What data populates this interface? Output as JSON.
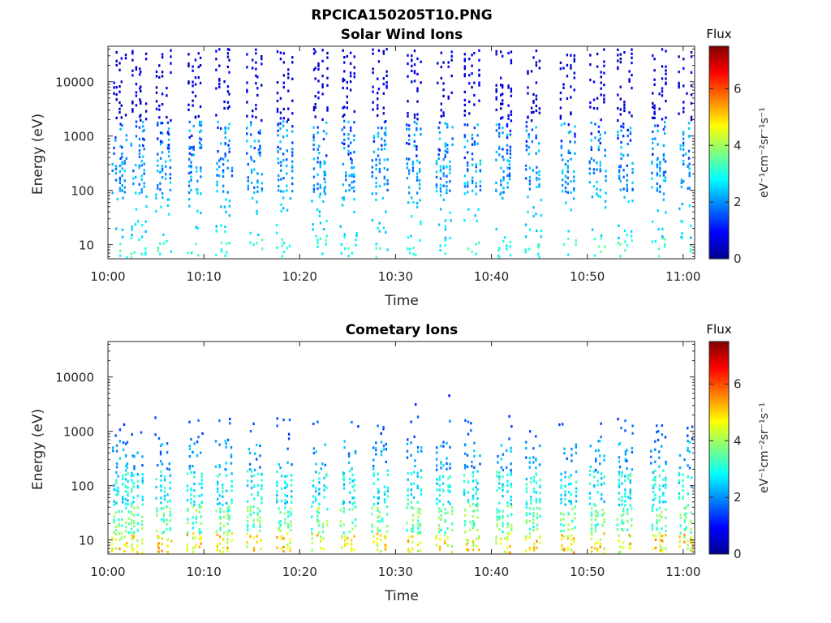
{
  "figure": {
    "title": "RPCICA150205T10.PNG"
  },
  "colorbar": {
    "label": "Flux",
    "unit_text": "eV⁻¹cm⁻²sr⁻¹s⁻¹",
    "range": [
      0,
      7.5
    ],
    "ticks": [
      "0",
      "2",
      "4",
      "6"
    ],
    "colormap": "jet"
  },
  "chart_data": [
    {
      "type": "heatmap",
      "title": "Solar Wind Ions",
      "xlabel": "Time",
      "ylabel": "Energy (eV)",
      "x_ticks": [
        "10:00",
        "10:10",
        "10:20",
        "10:30",
        "10:40",
        "10:50",
        "11:00"
      ],
      "x_range_minutes": [
        0,
        61.2
      ],
      "y_scale": "log",
      "y_range": [
        5.5,
        45000
      ],
      "y_ticks": [
        "10",
        "100",
        "1000",
        "10000"
      ],
      "sweep_times_minutes": [
        1,
        3,
        5.6,
        8.9,
        11.9,
        15.1,
        18.2,
        21.9,
        24.9,
        28.2,
        31.7,
        34.9,
        37.8,
        41.1,
        44.2,
        47.8,
        50.9,
        53.7,
        57.3,
        60.2
      ],
      "bands": [
        {
          "e_lo": 6,
          "e_hi": 14,
          "density": 0.25,
          "v_min": 2.6,
          "v_max": 3.6
        },
        {
          "e_lo": 14,
          "e_hi": 30,
          "density": 0.2,
          "v_min": 2.2,
          "v_max": 3.0
        },
        {
          "e_lo": 35,
          "e_hi": 90,
          "density": 0.15,
          "v_min": 2.2,
          "v_max": 2.7
        },
        {
          "e_lo": 90,
          "e_hi": 400,
          "density": 0.55,
          "v_min": 1.5,
          "v_max": 2.6
        },
        {
          "e_lo": 400,
          "e_hi": 2000,
          "density": 0.4,
          "v_min": 1.0,
          "v_max": 2.6
        },
        {
          "e_lo": 2000,
          "e_hi": 42000,
          "density": 0.3,
          "v_min": 0.35,
          "v_max": 1.0
        }
      ]
    },
    {
      "type": "heatmap",
      "title": "Cometary Ions",
      "xlabel": "Time",
      "ylabel": "Energy (eV)",
      "x_ticks": [
        "10:00",
        "10:10",
        "10:20",
        "10:30",
        "10:40",
        "10:50",
        "11:00"
      ],
      "x_range_minutes": [
        0,
        61.2
      ],
      "y_scale": "log",
      "y_range": [
        5.5,
        45000
      ],
      "y_ticks": [
        "10",
        "100",
        "1000",
        "10000"
      ],
      "sweep_times_minutes": [
        1,
        2.6,
        5.6,
        8.9,
        11.9,
        15.1,
        18.2,
        21.9,
        24.9,
        28.2,
        31.7,
        34.9,
        37.8,
        41.1,
        44.2,
        47.8,
        50.9,
        53.7,
        57.3,
        60.2
      ],
      "bands": [
        {
          "e_lo": 6,
          "e_hi": 14,
          "density": 0.6,
          "v_min": 3.8,
          "v_max": 5.6
        },
        {
          "e_lo": 14,
          "e_hi": 45,
          "density": 0.6,
          "v_min": 2.8,
          "v_max": 4.2
        },
        {
          "e_lo": 45,
          "e_hi": 200,
          "density": 0.6,
          "v_min": 2.2,
          "v_max": 3.4
        },
        {
          "e_lo": 200,
          "e_hi": 700,
          "density": 0.3,
          "v_min": 1.5,
          "v_max": 2.6
        },
        {
          "e_lo": 700,
          "e_hi": 2000,
          "density": 0.12,
          "v_min": 1.2,
          "v_max": 1.9
        }
      ],
      "annotations_note": "sparse isolated points near 3300 and 4800 eV around 10:32-10:36"
    }
  ]
}
